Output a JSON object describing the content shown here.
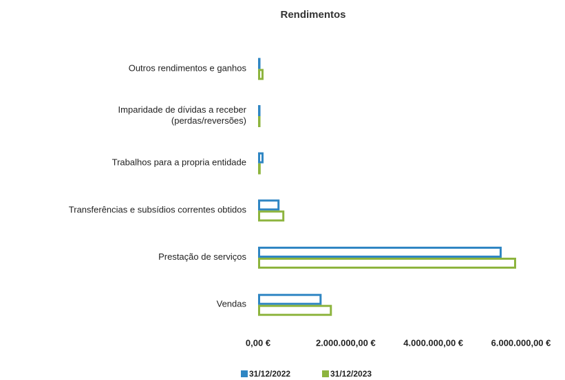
{
  "chart_data": {
    "type": "hbar",
    "title": "Rendimentos",
    "categories": [
      "Outros rendimentos e ganhos",
      "Imparidade de dívidas a receber\n(perdas/reversões)",
      "Trabalhos para a propria entidade",
      "Transferências e subsídios correntes obtidos",
      "Prestação de serviços",
      "Vendas"
    ],
    "series": [
      {
        "name": "31/12/2022",
        "color": "#2f86c3",
        "values": [
          45000,
          15000,
          125000,
          490000,
          5560000,
          1450000
        ]
      },
      {
        "name": "31/12/2023",
        "color": "#8db43e",
        "values": [
          125000,
          15000,
          60000,
          600000,
          5890000,
          1685000
        ]
      }
    ],
    "xlim": [
      0,
      6000000
    ],
    "xticks": [
      {
        "value": 0,
        "label": "0,00 €"
      },
      {
        "value": 2000000,
        "label": "2.000.000,00 €"
      },
      {
        "value": 4000000,
        "label": "4.000.000,00 €"
      },
      {
        "value": 6000000,
        "label": "6.000.000,00 €"
      }
    ],
    "grid": false,
    "legend": "bottom"
  }
}
